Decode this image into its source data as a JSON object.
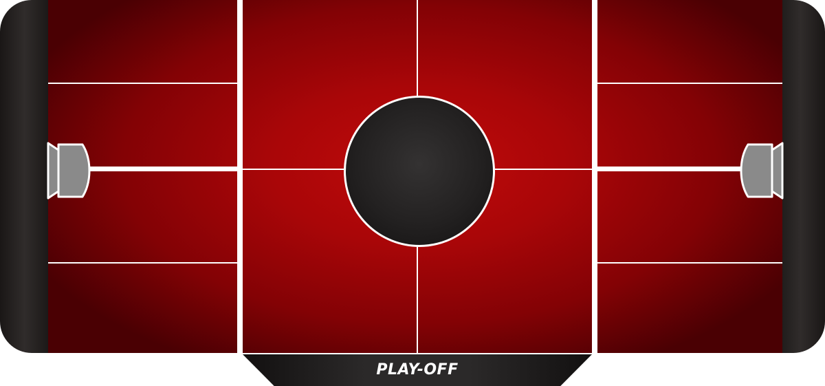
{
  "game": {
    "mode_label": "PLAY-OFF"
  },
  "colors": {
    "field_center": "#c00a0b",
    "field_edge": "#4a0003",
    "rail": "#2b2827",
    "lines": "#ffffff",
    "goal_fill": "#8a8a8a",
    "ring_fill": "#232121"
  },
  "icons": {
    "left_goal": "goal-left-icon",
    "right_goal": "goal-right-icon",
    "center_ring": "faceoff-circle"
  }
}
